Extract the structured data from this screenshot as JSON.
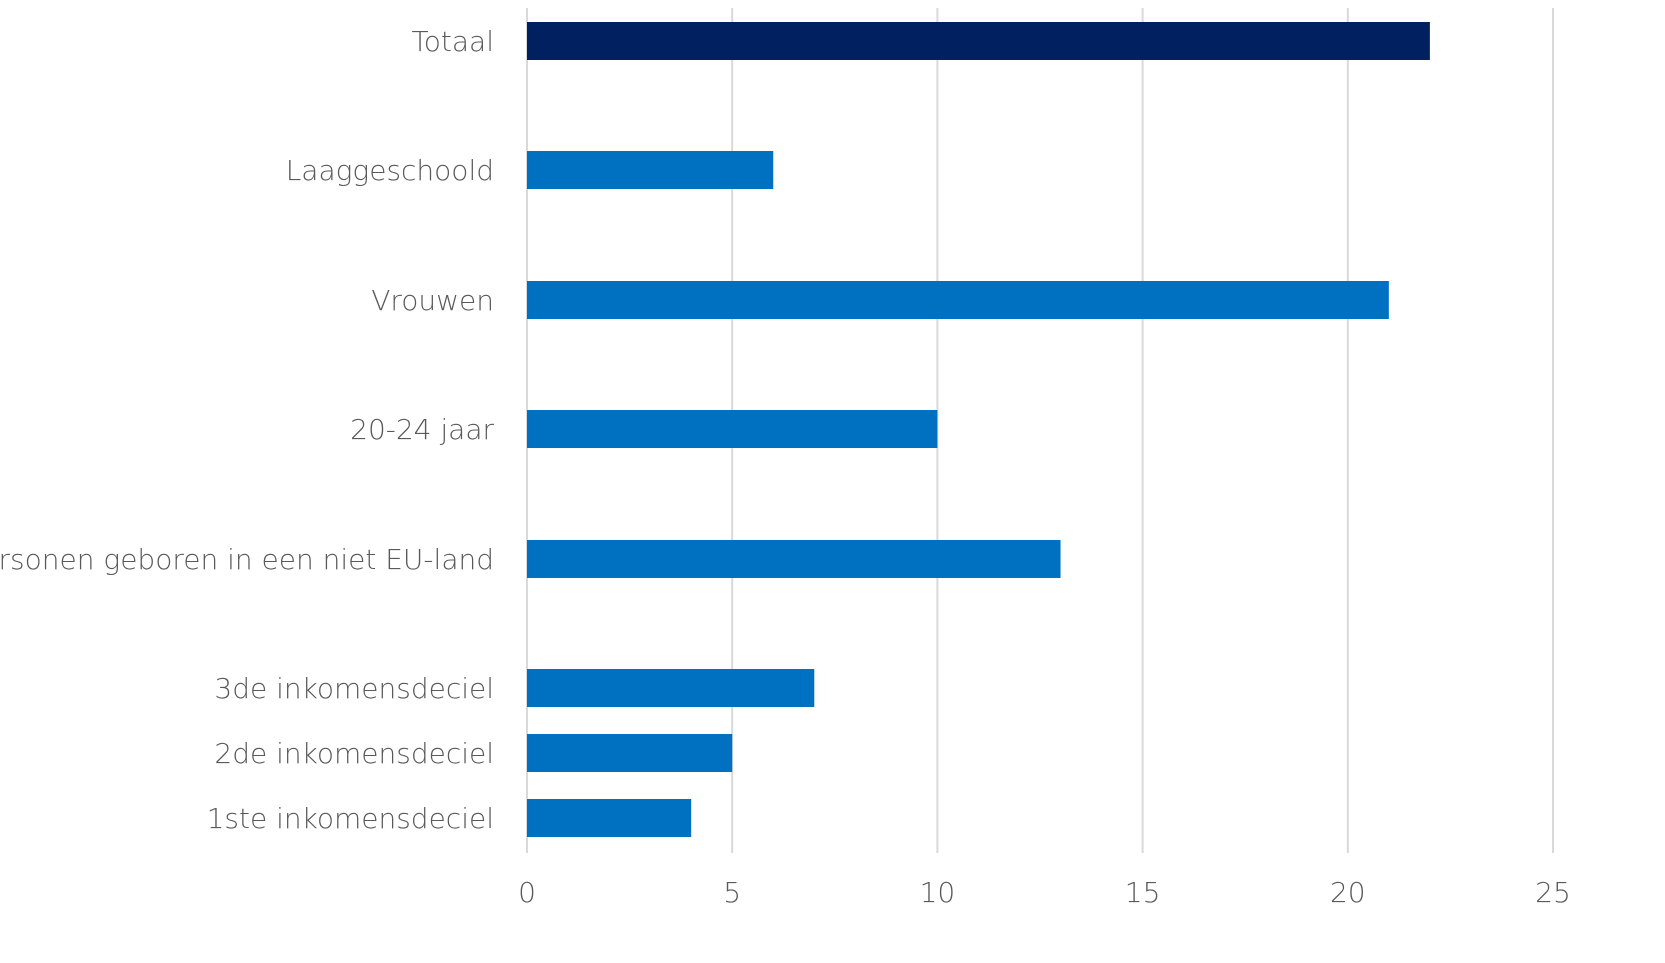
{
  "chart_data": {
    "type": "bar",
    "orientation": "horizontal",
    "categories": [
      "Totaal",
      "Laaggeschoold",
      "Vrouwen",
      "20-24 jaar",
      "Personen geboren in een niet EU-land",
      "3de inkomensdeciel",
      "2de inkomensdeciel",
      "1ste inkomensdeciel"
    ],
    "values": [
      22,
      6,
      21,
      10,
      13,
      7,
      5,
      4
    ],
    "bar_colors": [
      "#002060",
      "#0070c0",
      "#0070c0",
      "#0070c0",
      "#0070c0",
      "#0070c0",
      "#0070c0",
      "#0070c0"
    ],
    "xlim": [
      0,
      25
    ],
    "xticks": [
      0,
      5,
      10,
      15,
      20,
      25
    ],
    "title": "",
    "xlabel": "",
    "ylabel": "",
    "grid": true,
    "legend": "none"
  }
}
